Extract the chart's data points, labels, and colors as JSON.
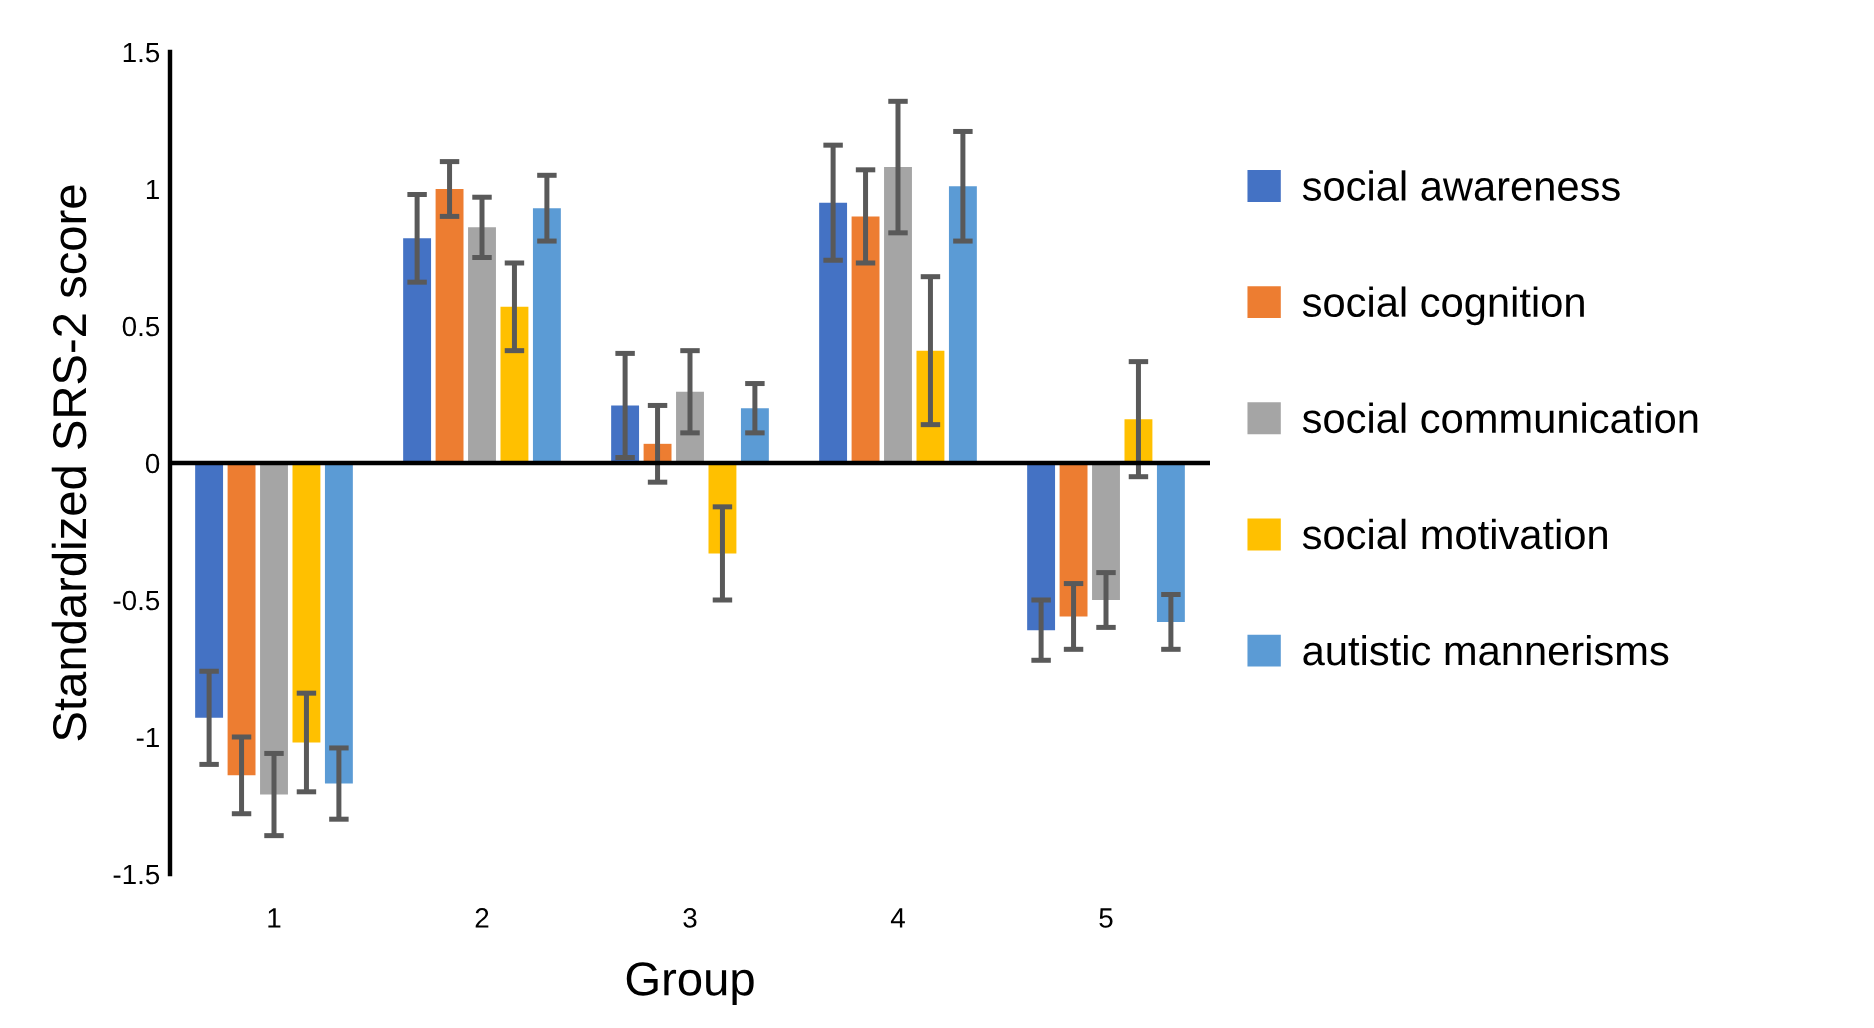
{
  "chart_data": {
    "type": "bar",
    "xlabel": "Group",
    "ylabel": "Standardized SRS-2 score",
    "categories": [
      "1",
      "2",
      "3",
      "4",
      "5"
    ],
    "ylim": [
      -1.5,
      1.5
    ],
    "yticks": [
      {
        "value": -1.5,
        "label": "-1.5"
      },
      {
        "value": -1,
        "label": "-1"
      },
      {
        "value": -0.5,
        "label": "-0.5"
      },
      0,
      0.5,
      1,
      1.5
    ],
    "grid": false,
    "legend": "right",
    "ref_lines": [
      {
        "axis": "y",
        "value": 0,
        "color": "#000000",
        "line_style": "solid"
      }
    ],
    "series": [
      {
        "name": "social awareness",
        "color": "#4472c4",
        "values": [
          -0.93,
          0.82,
          0.21,
          0.95,
          -0.61
        ],
        "errors": [
          0.17,
          0.16,
          0.19,
          0.21,
          0.11
        ]
      },
      {
        "name": "social cognition",
        "color": "#ed7d31",
        "values": [
          -1.14,
          1.0,
          0.07,
          0.9,
          -0.56
        ],
        "errors": [
          0.14,
          0.1,
          0.14,
          0.17,
          0.12
        ]
      },
      {
        "name": "social communication",
        "color": "#a5a5a5",
        "values": [
          -1.21,
          0.86,
          0.26,
          1.08,
          -0.5
        ],
        "errors": [
          0.15,
          0.11,
          0.15,
          0.24,
          0.1
        ]
      },
      {
        "name": "social motivation",
        "color": "#ffc000",
        "values": [
          -1.02,
          0.57,
          -0.33,
          0.41,
          0.16
        ],
        "errors": [
          0.18,
          0.16,
          0.17,
          0.27,
          0.21
        ]
      },
      {
        "name": "autistic mannerisms",
        "color": "#5b9bd5",
        "values": [
          -1.17,
          0.93,
          0.2,
          1.01,
          -0.58
        ],
        "errors": [
          0.13,
          0.12,
          0.09,
          0.2,
          0.1
        ]
      }
    ]
  }
}
